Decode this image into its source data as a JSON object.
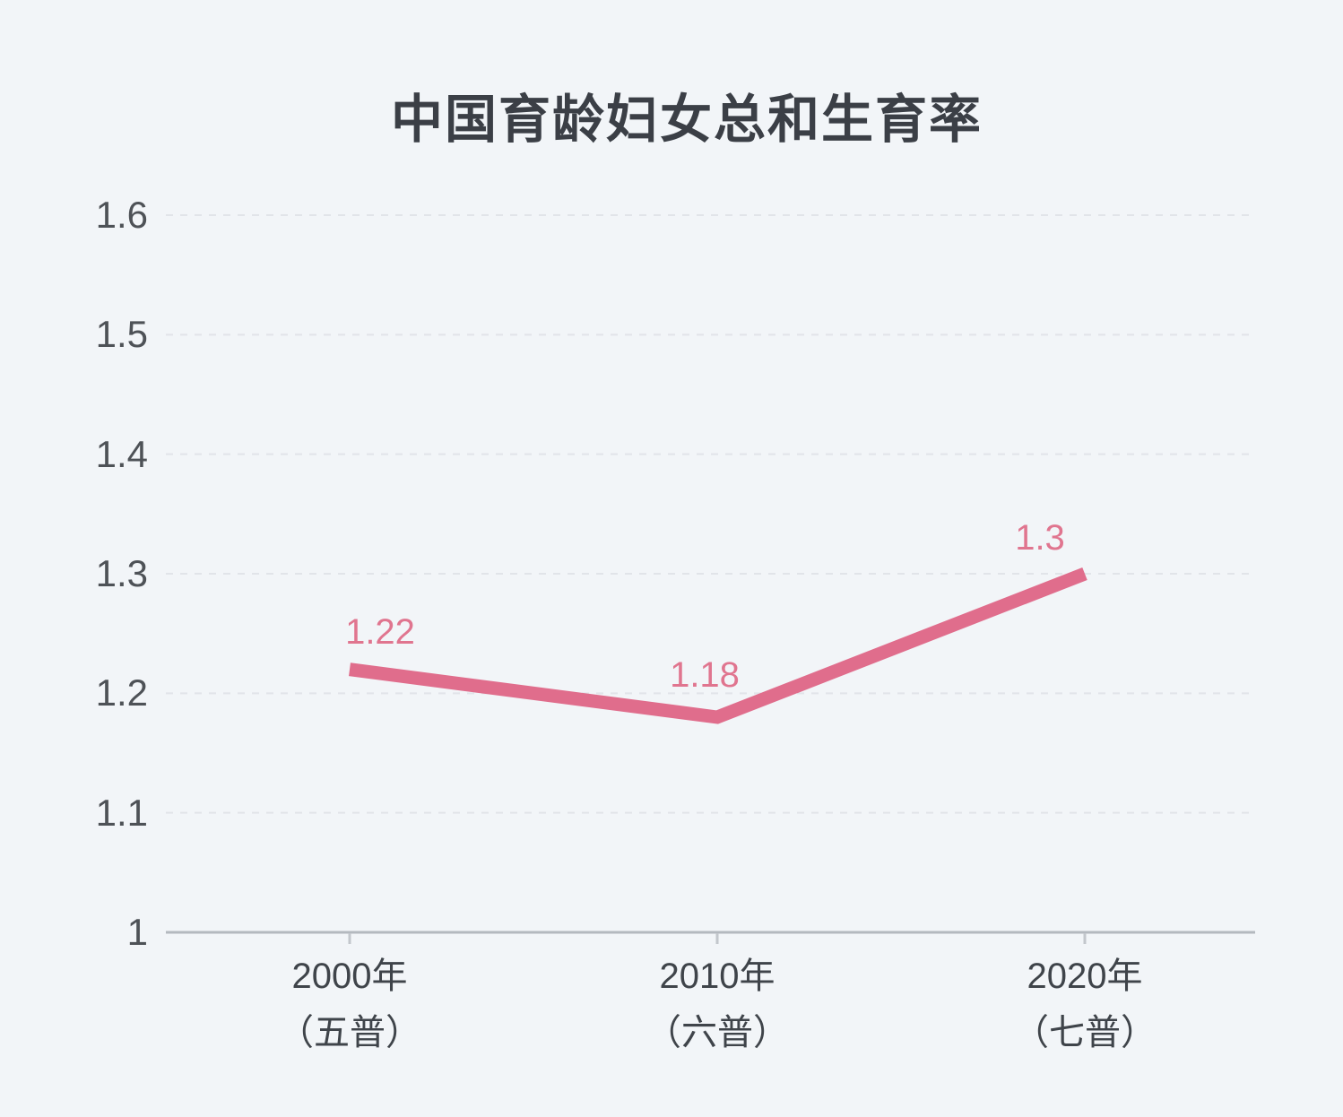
{
  "page": {
    "background": "#f2f5f8"
  },
  "chart_data": {
    "type": "line",
    "title": "中国育龄妇女总和生育率",
    "categories": [
      {
        "year": "2000年",
        "census": "（五普）"
      },
      {
        "year": "2010年",
        "census": "（六普）"
      },
      {
        "year": "2020年",
        "census": "（七普）"
      }
    ],
    "values": [
      1.22,
      1.18,
      1.3
    ],
    "point_labels": [
      "1.22",
      "1.18",
      "1.3"
    ],
    "xlabel": "",
    "ylabel": "",
    "ylim": [
      1,
      1.6
    ],
    "ytick_values": [
      1.6,
      1.5,
      1.4,
      1.3,
      1.2,
      1.1,
      1
    ],
    "ytick_labels": [
      "1.6",
      "1.5",
      "1.4",
      "1.3",
      "1.2",
      "1.1",
      "1"
    ],
    "grid": "horizontal-dashed",
    "legend": "none",
    "colors": {
      "background": "#f2f5f8",
      "line": "#e06d8c",
      "point_label": "#e0758f",
      "title_text": "#3b3f46",
      "ytick_text": "#4e5257",
      "xtick_text": "#3f444a",
      "axis_line": "#b4b9bf",
      "tick_mark": "#c3c7cc",
      "gridline": "#e1e4e9"
    }
  }
}
